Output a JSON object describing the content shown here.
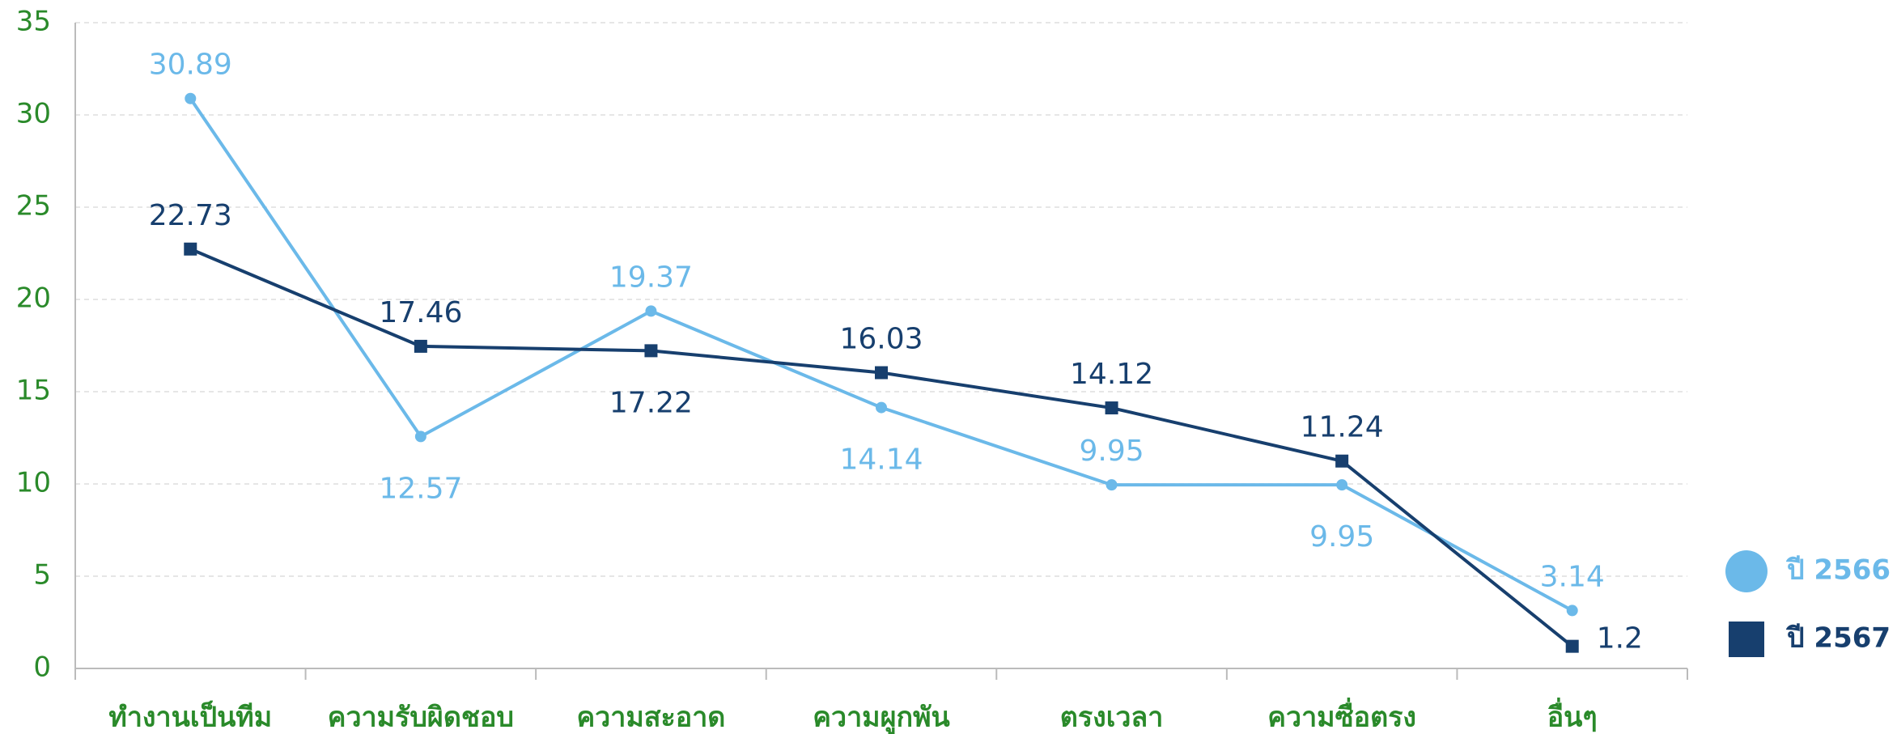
{
  "chart_data": {
    "type": "line",
    "categories": [
      "ทำงานเป็นทีม",
      "ความรับผิดชอบ",
      "ความสะอาด",
      "ความผูกพัน",
      "ตรงเวลา",
      "ความซื่อตรง",
      "อื่นๆ"
    ],
    "series": [
      {
        "name": "ปี 2566",
        "color": "#6bb9e9",
        "marker": "circle",
        "values": [
          30.89,
          12.57,
          19.37,
          14.14,
          9.95,
          9.95,
          3.14
        ]
      },
      {
        "name": "ปี 2567",
        "color": "#173f6e",
        "marker": "square",
        "values": [
          22.73,
          17.46,
          17.22,
          16.03,
          14.12,
          11.24,
          1.2
        ]
      }
    ],
    "ylim": [
      0,
      35
    ],
    "yticks": [
      0,
      5,
      10,
      15,
      20,
      25,
      30,
      35
    ],
    "grid": true,
    "legend": "right"
  }
}
